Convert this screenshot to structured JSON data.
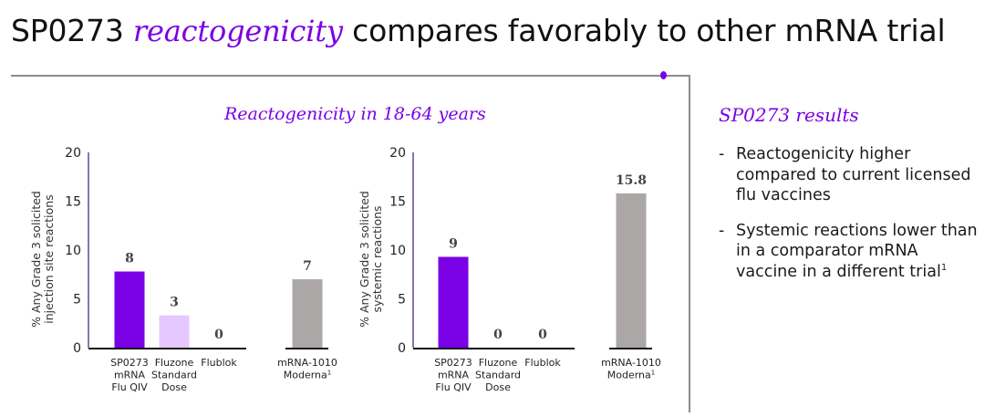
{
  "slide": {
    "title_prefix": "SP0273 ",
    "title_emphasis": "reactogenicity",
    "title_suffix": " compares favorably to other mRNA trial",
    "accent_color": "#7a00e6",
    "chart_heading": "Reactogenicity in 18-64 years"
  },
  "sidebar": {
    "heading": "SP0273 results",
    "bullets": [
      {
        "dash": "-",
        "text": "Reactogenicity higher compared to current licensed flu vaccines",
        "sup": ""
      },
      {
        "dash": "-",
        "text": "Systemic reactions lower than in a comparator mRNA vaccine in a different trial",
        "sup": "1"
      }
    ]
  },
  "chart_data": [
    {
      "type": "bar",
      "title": "Injection site reactions",
      "ylabel_lines": [
        "% Any Grade 3 solicited",
        "injection site  reactions"
      ],
      "ylim": [
        0,
        20
      ],
      "yticks": [
        0,
        5,
        10,
        15,
        20
      ],
      "grid": false,
      "categories": [
        {
          "lines": [
            "SP0273",
            "mRNA",
            "Flu QIV"
          ],
          "sup": ""
        },
        {
          "lines": [
            "Fluzone",
            "Standard",
            "Dose"
          ],
          "sup": ""
        },
        {
          "lines": [
            "Flublok"
          ],
          "sup": ""
        },
        {
          "lines": [
            "mRNA-1010",
            "Moderna"
          ],
          "sup": "1"
        }
      ],
      "values": [
        7.8,
        3.3,
        0,
        7
      ],
      "data_labels": [
        "8",
        "3",
        "0",
        "7"
      ],
      "colors": [
        "#7a00e6",
        "#e4c8ff",
        "#7a00e6",
        "#aba7a6"
      ]
    },
    {
      "type": "bar",
      "title": "Systemic reactions",
      "ylabel_lines": [
        "% Any Grade 3 solicited",
        "systemic reactions"
      ],
      "ylim": [
        0,
        20
      ],
      "yticks": [
        0,
        5,
        10,
        15,
        20
      ],
      "grid": false,
      "categories": [
        {
          "lines": [
            "SP0273",
            "mRNA",
            "Flu QIV"
          ],
          "sup": ""
        },
        {
          "lines": [
            "Fluzone",
            "Standard",
            "Dose"
          ],
          "sup": ""
        },
        {
          "lines": [
            "Flublok"
          ],
          "sup": ""
        },
        {
          "lines": [
            "mRNA-1010",
            "Moderna"
          ],
          "sup": "1"
        }
      ],
      "values": [
        9.3,
        0,
        0,
        15.8
      ],
      "data_labels": [
        "9",
        "0",
        "0",
        "15.8"
      ],
      "colors": [
        "#7a00e6",
        "#e4c8ff",
        "#7a00e6",
        "#aba7a6"
      ]
    }
  ]
}
